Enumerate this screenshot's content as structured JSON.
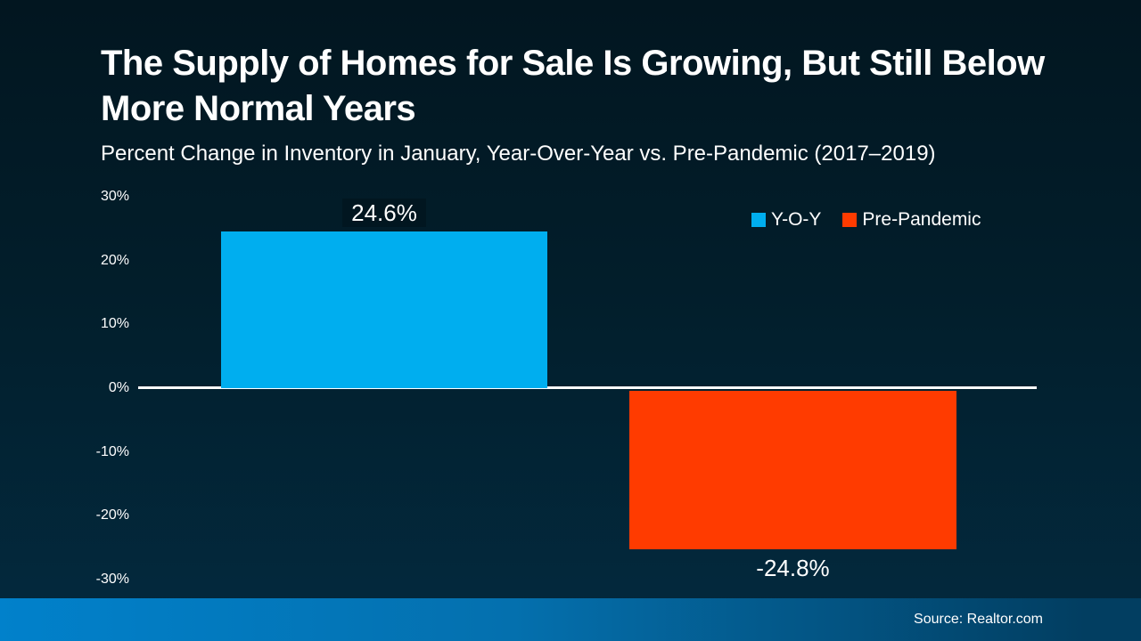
{
  "colors": {
    "background_top": "#021620",
    "background_bottom": "#032A3F",
    "yoy_blue": "#00AEEF",
    "pre_pandemic_red": "#FF3B00",
    "axis_line": "#FFFFFF",
    "text": "#FFFFFF",
    "footer_gradient_left": "#0181CB",
    "footer_gradient_right": "#023E61"
  },
  "footer": {
    "source": "Source: Realtor.com"
  },
  "chart_data": {
    "type": "bar",
    "title": "The Supply of Homes for Sale Is Growing, But Still Below More Normal Years",
    "subtitle": "Percent Change in Inventory in January, Year-Over-Year vs. Pre-Pandemic (2017–2019)",
    "categories": [
      "Y-O-Y",
      "Pre-Pandemic"
    ],
    "values": [
      24.6,
      -24.8
    ],
    "data_labels": [
      "24.6%",
      "-24.8%"
    ],
    "bar_colors": [
      "#00AEEF",
      "#FF3B00"
    ],
    "ylim": [
      -30,
      30
    ],
    "y_ticks": [
      30,
      20,
      10,
      0,
      -10,
      -20,
      -30
    ],
    "y_tick_labels": [
      "30%",
      "20%",
      "10%",
      "0%",
      "-10%",
      "-20%",
      "-30%"
    ],
    "grid": false,
    "zero_line": true,
    "legend_position": "top-right",
    "legend": [
      {
        "label": "Y-O-Y",
        "color": "#00AEEF"
      },
      {
        "label": "Pre-Pandemic",
        "color": "#FF3B00"
      }
    ]
  }
}
